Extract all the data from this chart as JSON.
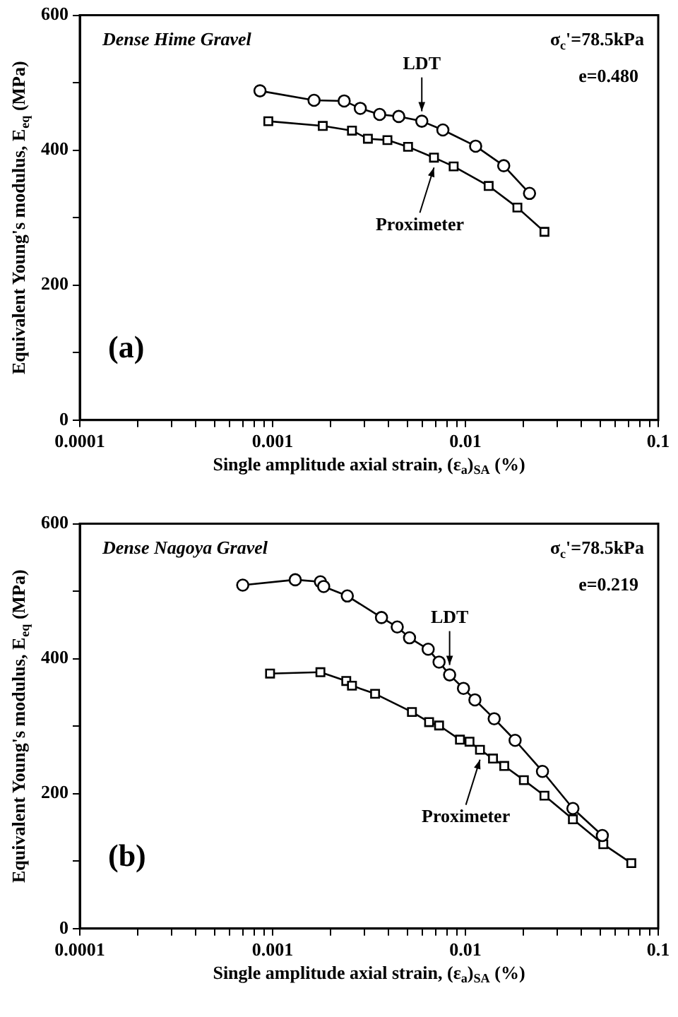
{
  "chart_data": [
    {
      "type": "line",
      "xlabel": "Single amplitude axial strain, (ε$_{a}$)$_{SA}$ (%)",
      "ylabel": "Equivalent Young's modulus, E$_{eq}$ (MPa)",
      "annotations": [
        "Dense Hime Gravel",
        "σ$_{c}$'=78.5kPa",
        "e=0.480",
        "(a)"
      ],
      "log": "x",
      "xlim": [
        0.0001,
        0.1
      ],
      "ylim": [
        0,
        600
      ],
      "xticks": [
        0.0001,
        {
          "value": 0.0002,
          "label": null
        },
        {
          "value": 0.0003,
          "label": null
        },
        {
          "value": 0.0004,
          "label": null
        },
        {
          "value": 0.0005,
          "label": null
        },
        {
          "value": 0.0006,
          "label": null
        },
        {
          "value": 0.0007,
          "label": null
        },
        {
          "value": 0.0008,
          "label": null
        },
        {
          "value": 0.0009,
          "label": null
        },
        0.001,
        {
          "value": 0.002,
          "label": null
        },
        {
          "value": 0.003,
          "label": null
        },
        {
          "value": 0.004,
          "label": null
        },
        {
          "value": 0.005,
          "label": null
        },
        {
          "value": 0.006,
          "label": null
        },
        {
          "value": 0.007,
          "label": null
        },
        {
          "value": 0.008,
          "label": null
        },
        {
          "value": 0.009,
          "label": null
        },
        0.01,
        {
          "value": 0.02,
          "label": null
        },
        {
          "value": 0.03,
          "label": null
        },
        {
          "value": 0.04,
          "label": null
        },
        {
          "value": 0.05,
          "label": null
        },
        {
          "value": 0.06,
          "label": null
        },
        {
          "value": 0.07,
          "label": null
        },
        {
          "value": 0.08,
          "label": null
        },
        {
          "value": 0.09,
          "label": null
        },
        0.1
      ],
      "yticks": [
        0,
        {
          "value": 100,
          "label": null
        },
        200,
        {
          "value": 300,
          "label": null
        },
        400,
        {
          "value": 500,
          "label": null
        },
        600
      ],
      "grid": false,
      "legend": false,
      "line_style": "solid",
      "series": [
        {
          "name": "LDT",
          "color": "#000000",
          "marker": "circle",
          "x": [
            0.00086,
            0.00164,
            0.00235,
            0.00285,
            0.00359,
            0.00451,
            0.00594,
            0.00764,
            0.0113,
            0.0158,
            0.0215
          ],
          "values": [
            488,
            474,
            473,
            462,
            453,
            450,
            443,
            430,
            406,
            377,
            336
          ]
        },
        {
          "name": "Proximeter",
          "color": "#000000",
          "marker": "square",
          "x": [
            0.00095,
            0.00182,
            0.00258,
            0.00312,
            0.00394,
            0.00504,
            0.00687,
            0.00869,
            0.0132,
            0.0186,
            0.0257
          ],
          "values": [
            443,
            436,
            429,
            417,
            415,
            405,
            389,
            376,
            347,
            315,
            279
          ]
        }
      ]
    },
    {
      "type": "line",
      "xlabel": "Single amplitude axial strain, (ε$_{a}$)$_{SA}$ (%)",
      "ylabel": "Equivalent Young's modulus, E$_{eq}$ (MPa)",
      "annotations": [
        "Dense Nagoya Gravel",
        "σ$_{c}$'=78.5kPa",
        "e=0.219",
        "(b)"
      ],
      "log": "x",
      "xlim": [
        0.0001,
        0.1
      ],
      "ylim": [
        0,
        600
      ],
      "xticks": [
        0.0001,
        {
          "value": 0.0002,
          "label": null
        },
        {
          "value": 0.0003,
          "label": null
        },
        {
          "value": 0.0004,
          "label": null
        },
        {
          "value": 0.0005,
          "label": null
        },
        {
          "value": 0.0006,
          "label": null
        },
        {
          "value": 0.0007,
          "label": null
        },
        {
          "value": 0.0008,
          "label": null
        },
        {
          "value": 0.0009,
          "label": null
        },
        0.001,
        {
          "value": 0.002,
          "label": null
        },
        {
          "value": 0.003,
          "label": null
        },
        {
          "value": 0.004,
          "label": null
        },
        {
          "value": 0.005,
          "label": null
        },
        {
          "value": 0.006,
          "label": null
        },
        {
          "value": 0.007,
          "label": null
        },
        {
          "value": 0.008,
          "label": null
        },
        {
          "value": 0.009,
          "label": null
        },
        0.01,
        {
          "value": 0.02,
          "label": null
        },
        {
          "value": 0.03,
          "label": null
        },
        {
          "value": 0.04,
          "label": null
        },
        {
          "value": 0.05,
          "label": null
        },
        {
          "value": 0.06,
          "label": null
        },
        {
          "value": 0.07,
          "label": null
        },
        {
          "value": 0.08,
          "label": null
        },
        {
          "value": 0.09,
          "label": null
        },
        0.1
      ],
      "yticks": [
        0,
        {
          "value": 100,
          "label": null
        },
        200,
        {
          "value": 300,
          "label": null
        },
        400,
        {
          "value": 500,
          "label": null
        },
        600
      ],
      "grid": false,
      "legend": false,
      "line_style": "solid",
      "series": [
        {
          "name": "LDT",
          "color": "#000000",
          "marker": "circle",
          "x": [
            0.0007,
            0.00131,
            0.00177,
            0.00184,
            0.00244,
            0.00367,
            0.00443,
            0.00513,
            0.00641,
            0.0073,
            0.00828,
            0.00977,
            0.0112,
            0.0141,
            0.0181,
            0.0251,
            0.0361,
            0.0513
          ],
          "values": [
            509,
            517,
            514,
            507,
            493,
            461,
            447,
            431,
            414,
            395,
            376,
            356,
            339,
            311,
            279,
            233,
            178,
            138
          ]
        },
        {
          "name": "Proximeter",
          "color": "#000000",
          "marker": "square",
          "x": [
            0.00097,
            0.00177,
            0.00241,
            0.00258,
            0.0034,
            0.00528,
            0.00648,
            0.0073,
            0.00937,
            0.0105,
            0.0119,
            0.0139,
            0.0159,
            0.0201,
            0.0257,
            0.0361,
            0.0519,
            0.0725
          ],
          "values": [
            378,
            380,
            367,
            360,
            348,
            321,
            306,
            301,
            280,
            277,
            265,
            252,
            241,
            220,
            197,
            162,
            125,
            97
          ]
        }
      ]
    }
  ]
}
